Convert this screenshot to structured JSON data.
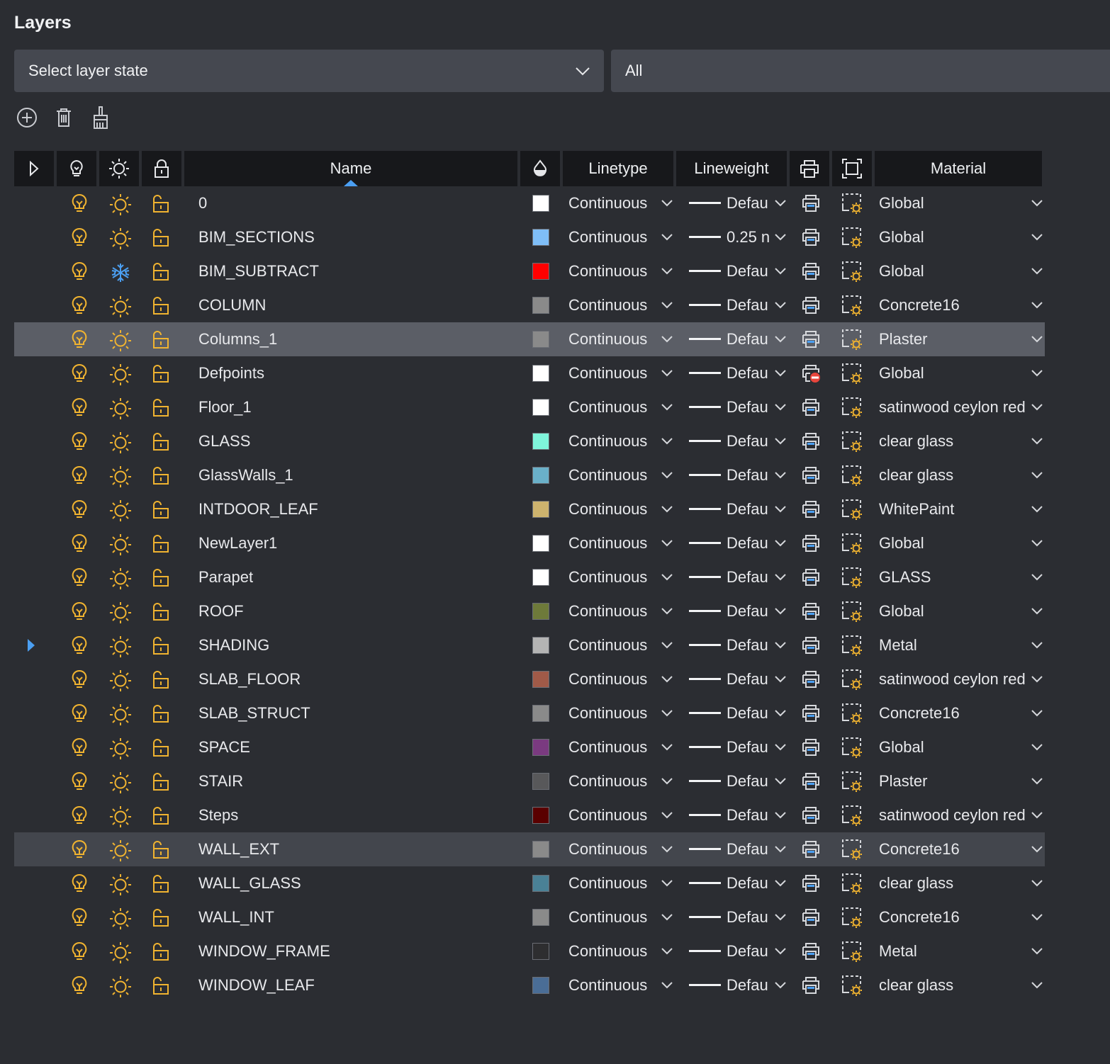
{
  "panel": {
    "title": "Layers"
  },
  "layer_state": {
    "placeholder": "Select layer state",
    "icon": "chevron-down-icon"
  },
  "filter": {
    "value": "All"
  },
  "toolbar": [
    {
      "name": "new-layer-button",
      "icon": "plus-circle-icon"
    },
    {
      "name": "delete-layer-button",
      "icon": "trash-icon"
    },
    {
      "name": "purge-button",
      "icon": "broom-icon"
    }
  ],
  "columns": {
    "expand": "expand-icon",
    "on": "lightbulb-icon",
    "freeze": "sun-icon",
    "lock": "lock-icon",
    "name": "Name",
    "color": "color-drop-icon",
    "linetype": "Linetype",
    "lineweight": "Lineweight",
    "plot": "printer-icon",
    "viewport": "viewport-icon",
    "material": "Material"
  },
  "colors": {
    "icon_yellow": "#f0b330",
    "accent_blue": "#4b9ff2",
    "header_bg": "#17181b",
    "selected_row": "#5b5e66",
    "panel_bg": "#2b2d32"
  },
  "layers": [
    {
      "name": "0",
      "color": "#ffffff",
      "linetype": "Continuous",
      "lineweight": "Defau",
      "material": "Global",
      "frozen": false,
      "plot": true,
      "expandable": false
    },
    {
      "name": "BIM_SECTIONS",
      "color": "#7fbef7",
      "linetype": "Continuous",
      "lineweight": "0.25 n",
      "material": "Global",
      "frozen": false,
      "plot": true,
      "expandable": false
    },
    {
      "name": "BIM_SUBTRACT",
      "color": "#ff0000",
      "linetype": "Continuous",
      "lineweight": "Defau",
      "material": "Global",
      "frozen": true,
      "plot": true,
      "expandable": false
    },
    {
      "name": "COLUMN",
      "color": "#8a8a8a",
      "linetype": "Continuous",
      "lineweight": "Defau",
      "material": "Concrete16",
      "frozen": false,
      "plot": true,
      "expandable": false
    },
    {
      "name": "Columns_1",
      "color": "#8a8a8a",
      "linetype": "Continuous",
      "lineweight": "Defau",
      "material": "Plaster",
      "frozen": false,
      "plot": true,
      "expandable": false,
      "selected": true
    },
    {
      "name": "Defpoints",
      "color": "#ffffff",
      "linetype": "Continuous",
      "lineweight": "Defau",
      "material": "Global",
      "frozen": false,
      "plot": false,
      "expandable": false
    },
    {
      "name": "Floor_1",
      "color": "#ffffff",
      "linetype": "Continuous",
      "lineweight": "Defau",
      "material": "satinwood ceylon red",
      "frozen": false,
      "plot": true,
      "expandable": false
    },
    {
      "name": "GLASS",
      "color": "#7ff5db",
      "linetype": "Continuous",
      "lineweight": "Defau",
      "material": "clear glass",
      "frozen": false,
      "plot": true,
      "expandable": false
    },
    {
      "name": "GlassWalls_1",
      "color": "#6ab0c9",
      "linetype": "Continuous",
      "lineweight": "Defau",
      "material": "clear glass",
      "frozen": false,
      "plot": true,
      "expandable": false
    },
    {
      "name": "INTDOOR_LEAF",
      "color": "#cdb36e",
      "linetype": "Continuous",
      "lineweight": "Defau",
      "material": "WhitePaint",
      "frozen": false,
      "plot": true,
      "expandable": false
    },
    {
      "name": "NewLayer1",
      "color": "#ffffff",
      "linetype": "Continuous",
      "lineweight": "Defau",
      "material": "Global",
      "frozen": false,
      "plot": true,
      "expandable": false
    },
    {
      "name": "Parapet",
      "color": "#ffffff",
      "linetype": "Continuous",
      "lineweight": "Defau",
      "material": "GLASS",
      "frozen": false,
      "plot": true,
      "expandable": false
    },
    {
      "name": "ROOF",
      "color": "#6e7a3a",
      "linetype": "Continuous",
      "lineweight": "Defau",
      "material": "Global",
      "frozen": false,
      "plot": true,
      "expandable": false
    },
    {
      "name": "SHADING",
      "color": "#b4b4b4",
      "linetype": "Continuous",
      "lineweight": "Defau",
      "material": "Metal",
      "frozen": false,
      "plot": true,
      "expandable": true
    },
    {
      "name": "SLAB_FLOOR",
      "color": "#a05a48",
      "linetype": "Continuous",
      "lineweight": "Defau",
      "material": "satinwood ceylon red",
      "frozen": false,
      "plot": true,
      "expandable": false
    },
    {
      "name": "SLAB_STRUCT",
      "color": "#8a8a8a",
      "linetype": "Continuous",
      "lineweight": "Defau",
      "material": "Concrete16",
      "frozen": false,
      "plot": true,
      "expandable": false
    },
    {
      "name": "SPACE",
      "color": "#7a3a80",
      "linetype": "Continuous",
      "lineweight": "Defau",
      "material": "Global",
      "frozen": false,
      "plot": true,
      "expandable": false
    },
    {
      "name": "STAIR",
      "color": "#58585a",
      "linetype": "Continuous",
      "lineweight": "Defau",
      "material": "Plaster",
      "frozen": false,
      "plot": true,
      "expandable": false
    },
    {
      "name": "Steps",
      "color": "#5a0000",
      "linetype": "Continuous",
      "lineweight": "Defau",
      "material": "satinwood ceylon red",
      "frozen": false,
      "plot": true,
      "expandable": false
    },
    {
      "name": "WALL_EXT",
      "color": "#8a8a8a",
      "linetype": "Continuous",
      "lineweight": "Defau",
      "material": "Concrete16",
      "frozen": false,
      "plot": true,
      "expandable": false,
      "hover": true
    },
    {
      "name": "WALL_GLASS",
      "color": "#4a8196",
      "linetype": "Continuous",
      "lineweight": "Defau",
      "material": "clear glass",
      "frozen": false,
      "plot": true,
      "expandable": false
    },
    {
      "name": "WALL_INT",
      "color": "#8a8a8a",
      "linetype": "Continuous",
      "lineweight": "Defau",
      "material": "Concrete16",
      "frozen": false,
      "plot": true,
      "expandable": false
    },
    {
      "name": "WINDOW_FRAME",
      "color": "#2e2e30",
      "linetype": "Continuous",
      "lineweight": "Defau",
      "material": "Metal",
      "frozen": false,
      "plot": true,
      "expandable": false
    },
    {
      "name": "WINDOW_LEAF",
      "color": "#4a6d96",
      "linetype": "Continuous",
      "lineweight": "Defau",
      "material": "clear glass",
      "frozen": false,
      "plot": true,
      "expandable": false
    }
  ]
}
